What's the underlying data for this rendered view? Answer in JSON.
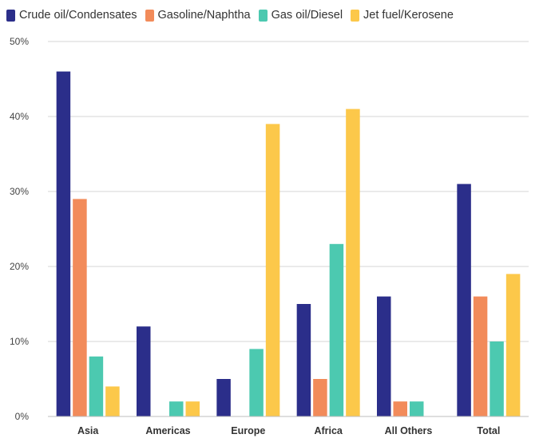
{
  "chart_data": {
    "type": "bar",
    "title": "",
    "xlabel": "",
    "ylabel": "",
    "ylim": [
      0,
      50
    ],
    "yticks": [
      0,
      10,
      20,
      30,
      40,
      50
    ],
    "ytick_labels": [
      "0%",
      "10%",
      "20%",
      "30%",
      "40%",
      "50%"
    ],
    "grid": true,
    "legend_position": "top-left",
    "categories": [
      "Asia",
      "Americas",
      "Europe",
      "Africa",
      "All Others",
      "Total"
    ],
    "series": [
      {
        "name": "Crude oil/Condensates",
        "color": "#2b2e8a",
        "values": [
          46,
          12,
          5,
          15,
          16,
          31
        ]
      },
      {
        "name": "Gasoline/Naphtha",
        "color": "#f28b5a",
        "values": [
          29,
          0,
          0,
          5,
          2,
          16
        ]
      },
      {
        "name": "Gas oil/Diesel",
        "color": "#4cc9b0",
        "values": [
          8,
          2,
          9,
          23,
          2,
          10
        ]
      },
      {
        "name": "Jet fuel/Kerosene",
        "color": "#fcc84a",
        "values": [
          4,
          2,
          39,
          41,
          0,
          19
        ]
      }
    ]
  }
}
